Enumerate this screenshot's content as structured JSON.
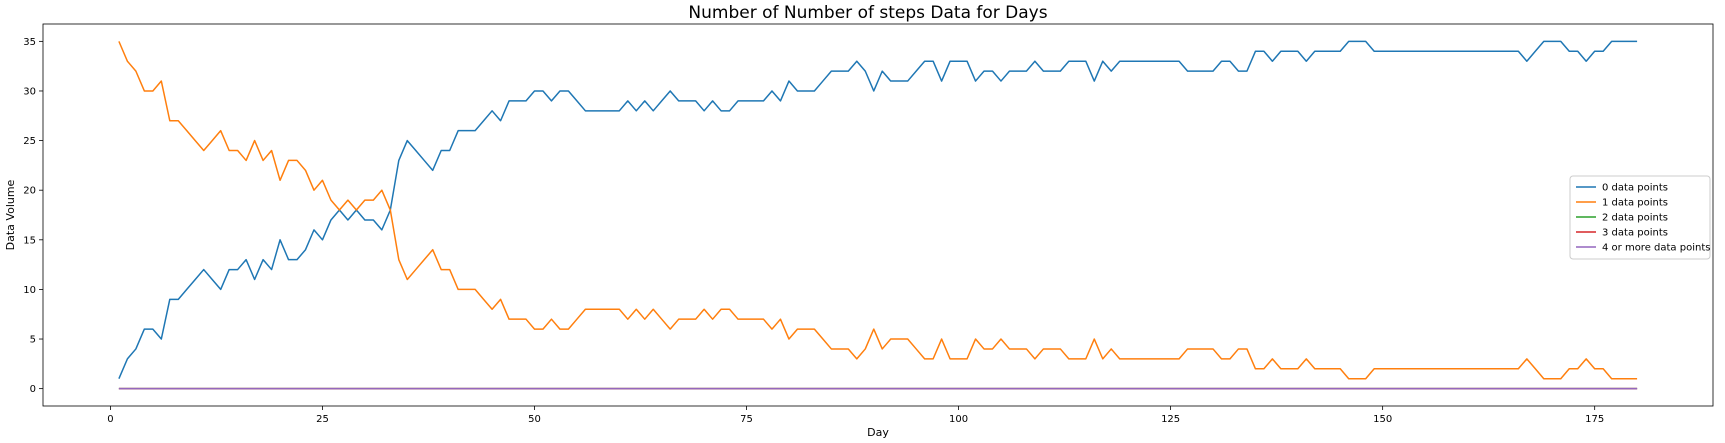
{
  "chart_data": {
    "type": "line",
    "title": "Number of Number of steps Data for Days",
    "xlabel": "Day",
    "ylabel": "Data Volume",
    "xlim": [
      -7.95,
      188.95
    ],
    "ylim": [
      -1.75,
      36.75
    ],
    "xticks": [
      0,
      25,
      50,
      75,
      100,
      125,
      150,
      175
    ],
    "yticks": [
      0,
      5,
      10,
      15,
      20,
      25,
      30,
      35
    ],
    "grid": false,
    "legend_position": "center-right",
    "x": [
      1,
      2,
      3,
      4,
      5,
      6,
      7,
      8,
      9,
      10,
      11,
      12,
      13,
      14,
      15,
      16,
      17,
      18,
      19,
      20,
      21,
      22,
      23,
      24,
      25,
      26,
      27,
      28,
      29,
      30,
      31,
      32,
      33,
      34,
      35,
      36,
      37,
      38,
      39,
      40,
      41,
      42,
      43,
      44,
      45,
      46,
      47,
      48,
      49,
      50,
      51,
      52,
      53,
      54,
      55,
      56,
      57,
      58,
      59,
      60,
      61,
      62,
      63,
      64,
      65,
      66,
      67,
      68,
      69,
      70,
      71,
      72,
      73,
      74,
      75,
      76,
      77,
      78,
      79,
      80,
      81,
      82,
      83,
      84,
      85,
      86,
      87,
      88,
      89,
      90,
      91,
      92,
      93,
      94,
      95,
      96,
      97,
      98,
      99,
      100,
      101,
      102,
      103,
      104,
      105,
      106,
      107,
      108,
      109,
      110,
      111,
      112,
      113,
      114,
      115,
      116,
      117,
      118,
      119,
      120,
      121,
      122,
      123,
      124,
      125,
      126,
      127,
      128,
      129,
      130,
      131,
      132,
      133,
      134,
      135,
      136,
      137,
      138,
      139,
      140,
      141,
      142,
      143,
      144,
      145,
      146,
      147,
      148,
      149,
      150,
      151,
      152,
      153,
      154,
      155,
      156,
      157,
      158,
      159,
      160,
      161,
      162,
      163,
      164,
      165,
      166,
      167,
      168,
      169,
      170,
      171,
      172,
      173,
      174,
      175,
      176,
      177,
      178,
      179,
      180
    ],
    "series": [
      {
        "name": "0 data points",
        "color": "#1f77b4",
        "values": [
          1,
          3,
          4,
          6,
          6,
          5,
          9,
          9,
          10,
          11,
          12,
          11,
          10,
          12,
          12,
          13,
          11,
          13,
          12,
          15,
          13,
          13,
          14,
          16,
          15,
          17,
          18,
          17,
          18,
          17,
          17,
          16,
          18,
          23,
          25,
          24,
          23,
          22,
          24,
          24,
          26,
          26,
          26,
          27,
          28,
          27,
          29,
          29,
          29,
          30,
          30,
          29,
          30,
          30,
          29,
          28,
          28,
          28,
          28,
          28,
          29,
          28,
          29,
          28,
          29,
          30,
          29,
          29,
          29,
          28,
          29,
          28,
          28,
          29,
          29,
          29,
          29,
          30,
          29,
          31,
          30,
          30,
          30,
          31,
          32,
          32,
          32,
          33,
          32,
          30,
          32,
          31,
          31,
          31,
          32,
          33,
          33,
          31,
          33,
          33,
          33,
          31,
          32,
          32,
          31,
          32,
          32,
          32,
          33,
          32,
          32,
          32,
          33,
          33,
          33,
          31,
          33,
          32,
          33,
          33,
          33,
          33,
          33,
          33,
          33,
          33,
          32,
          32,
          32,
          32,
          33,
          33,
          32,
          32,
          34,
          34,
          33,
          34,
          34,
          34,
          33,
          34,
          34,
          34,
          34,
          35,
          35,
          35,
          34,
          34,
          34,
          34,
          34,
          34,
          34,
          34,
          34,
          34,
          34,
          34,
          34,
          34,
          34,
          34,
          34,
          34,
          33,
          34,
          35,
          35,
          35,
          34,
          34,
          33,
          34,
          34,
          35,
          35,
          35,
          35
        ]
      },
      {
        "name": "1 data points",
        "color": "#ff7f0e",
        "values": [
          35,
          33,
          32,
          30,
          30,
          31,
          27,
          27,
          26,
          25,
          24,
          25,
          26,
          24,
          24,
          23,
          25,
          23,
          24,
          21,
          23,
          23,
          22,
          20,
          21,
          19,
          18,
          19,
          18,
          19,
          19,
          20,
          18,
          13,
          11,
          12,
          13,
          14,
          12,
          12,
          10,
          10,
          10,
          9,
          8,
          9,
          7,
          7,
          7,
          6,
          6,
          7,
          6,
          6,
          7,
          8,
          8,
          8,
          8,
          8,
          7,
          8,
          7,
          8,
          7,
          6,
          7,
          7,
          7,
          8,
          7,
          8,
          8,
          7,
          7,
          7,
          7,
          6,
          7,
          5,
          6,
          6,
          6,
          5,
          4,
          4,
          4,
          3,
          4,
          6,
          4,
          5,
          5,
          5,
          4,
          3,
          3,
          5,
          3,
          3,
          3,
          5,
          4,
          4,
          5,
          4,
          4,
          4,
          3,
          4,
          4,
          4,
          3,
          3,
          3,
          5,
          3,
          4,
          3,
          3,
          3,
          3,
          3,
          3,
          3,
          3,
          4,
          4,
          4,
          4,
          3,
          3,
          4,
          4,
          2,
          2,
          3,
          2,
          2,
          2,
          3,
          2,
          2,
          2,
          2,
          1,
          1,
          1,
          2,
          2,
          2,
          2,
          2,
          2,
          2,
          2,
          2,
          2,
          2,
          2,
          2,
          2,
          2,
          2,
          2,
          2,
          3,
          2,
          1,
          1,
          1,
          2,
          2,
          3,
          2,
          2,
          1,
          1,
          1,
          1
        ]
      },
      {
        "name": "2 data points",
        "color": "#2ca02c",
        "constant": 0
      },
      {
        "name": "3 data points",
        "color": "#d62728",
        "constant": 0
      },
      {
        "name": "4 or more data points",
        "color": "#9467bd",
        "constant": 0
      }
    ]
  }
}
